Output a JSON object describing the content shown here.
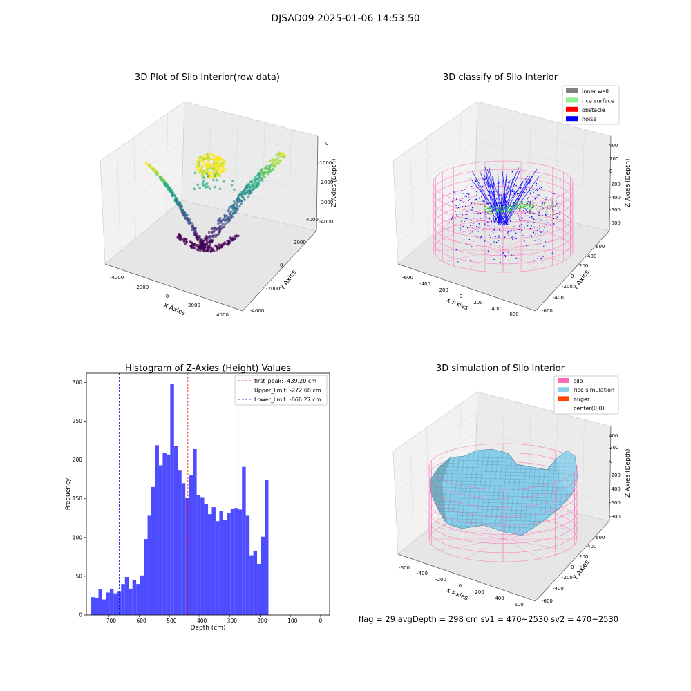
{
  "suptitle": "DJSAD09 2025-01-06 14:53:50",
  "footer": "flag = 29  avgDepth = 298 cm  sv1 = 470~2530  sv2 = 470~2530",
  "colors": {
    "hist_bar": "#4d4dff",
    "first_peak_line": "#ff0000",
    "limit_lines": "#0000ff",
    "silo": "#ff69b4",
    "rice_simulation": "#87ceeb",
    "auger": "#ff4500",
    "inner_wall": "#808080",
    "rice_surface": "#90ee90",
    "obstacle": "#ff0000",
    "noise": "#0000ff"
  },
  "chart_data": [
    {
      "type": "scatter",
      "projection": "3d",
      "title": "3D Plot of Silo Interior(row data)",
      "xlabel": "X Axies",
      "ylabel": "Y Axies",
      "zlabel": "Z Axies (Depth)",
      "xticks": [
        "-4000",
        "-2000",
        "0",
        "2000",
        "4000"
      ],
      "yticks": [
        "-4000",
        "-2000",
        "0",
        "2000",
        "4000"
      ],
      "zticks": [
        "0",
        "-1000",
        "-2000",
        "-3000",
        "-4000"
      ],
      "colormap": "viridis"
    },
    {
      "type": "scatter",
      "projection": "3d",
      "title": "3D classify of Silo Interior",
      "xlabel": "X Axies",
      "ylabel": "Y Axies",
      "zlabel": "Z Axies (Depth)",
      "xticks": [
        "-600",
        "-400",
        "-200",
        "0",
        "200",
        "400",
        "600"
      ],
      "yticks": [
        "-600",
        "-400",
        "-200",
        "0",
        "200",
        "400",
        "600"
      ],
      "zticks": [
        "400",
        "200",
        "0",
        "-200",
        "-400",
        "-600",
        "-800"
      ],
      "legend": [
        {
          "label": "inner wall",
          "color": "#808080"
        },
        {
          "label": "rice surface",
          "color": "#90ee90"
        },
        {
          "label": "obstacle",
          "color": "#ff0000"
        },
        {
          "label": "noise",
          "color": "#0000ff"
        }
      ]
    },
    {
      "type": "bar",
      "subtype": "histogram",
      "title": "Histogram of Z-Axies (Height) Values",
      "xlabel": "Depth (cm)",
      "ylabel": "Frequency",
      "xlim": [
        -775,
        30
      ],
      "ylim": [
        0,
        312
      ],
      "xticks": [
        -700,
        -600,
        -500,
        -400,
        -300,
        -200,
        -100,
        0
      ],
      "yticks": [
        0,
        50,
        100,
        150,
        200,
        250,
        300
      ],
      "bin_width": 12.5,
      "bin_start": -760,
      "values": [
        23,
        22,
        33,
        20,
        29,
        34,
        28,
        30,
        40,
        49,
        34,
        45,
        40,
        51,
        98,
        128,
        165,
        219,
        193,
        209,
        207,
        298,
        218,
        187,
        170,
        151,
        180,
        214,
        155,
        152,
        143,
        130,
        139,
        121,
        134,
        123,
        131,
        137,
        138,
        136,
        191,
        128,
        77,
        83,
        66,
        101,
        174
      ],
      "vlines": [
        {
          "label": "first_peak: -439.20 cm",
          "x": -439.2,
          "color": "#ff0000"
        },
        {
          "label": "Upper_limit: -272.68 cm",
          "x": -272.68,
          "color": "#0000ff"
        },
        {
          "label": "Lower_limit: -666.27 cm",
          "x": -666.27,
          "color": "#0000ff"
        }
      ]
    },
    {
      "type": "surface",
      "projection": "3d",
      "title": "3D simulation of Silo Interior",
      "xlabel": "X Axies",
      "ylabel": "Y Axies",
      "zlabel": "Z Axies (Depth)",
      "xticks": [
        "-600",
        "-400",
        "-200",
        "0",
        "200",
        "400",
        "600"
      ],
      "yticks": [
        "-600",
        "-400",
        "-200",
        "0",
        "200",
        "400",
        "600"
      ],
      "zticks": [
        "400",
        "200",
        "0",
        "-200",
        "-400",
        "-600",
        "-800"
      ],
      "legend": [
        {
          "label": "silo",
          "color": "#ff69b4"
        },
        {
          "label": "rice simulation",
          "color": "#87ceeb"
        },
        {
          "label": "auger",
          "color": "#ff4500"
        },
        {
          "label": "center(0,0)",
          "color": "#ffffff"
        }
      ]
    }
  ]
}
